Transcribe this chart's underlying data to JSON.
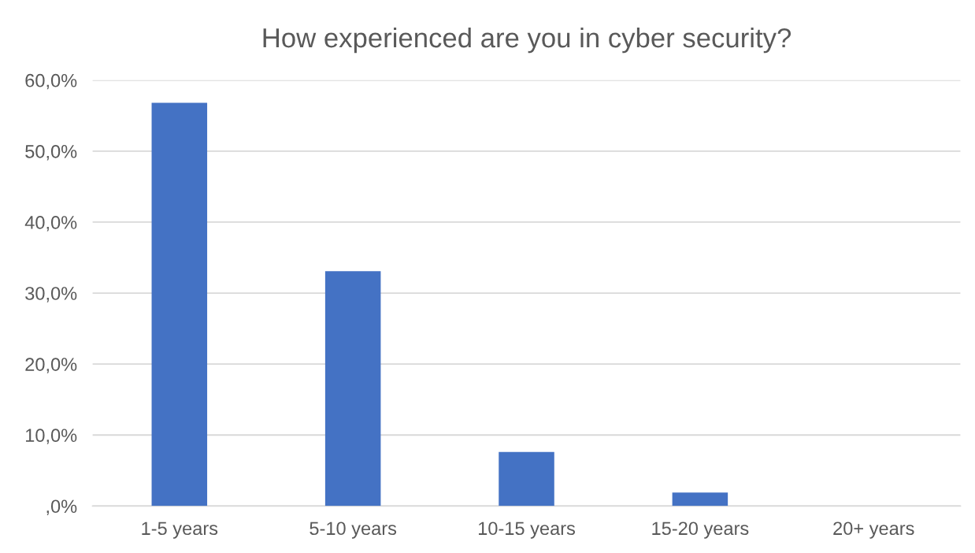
{
  "chart_data": {
    "type": "bar",
    "title": "How experienced are you in cyber security?",
    "categories": [
      "1-5 years",
      "5-10 years",
      "10-15 years",
      "15-20 years",
      "20+ years"
    ],
    "values": [
      56.8,
      33.1,
      7.6,
      1.9,
      0
    ],
    "color": "#4472c4",
    "ylim": [
      0,
      60
    ],
    "yticks": [
      {
        "value": 0,
        "label": ",0%"
      },
      {
        "value": 10,
        "label": "10,0%"
      },
      {
        "value": 20,
        "label": "20,0%"
      },
      {
        "value": 30,
        "label": "30,0%"
      },
      {
        "value": 40,
        "label": "40,0%"
      },
      {
        "value": 50,
        "label": "50,0%"
      },
      {
        "value": 60,
        "label": "60,0%"
      }
    ],
    "grid": "y"
  }
}
